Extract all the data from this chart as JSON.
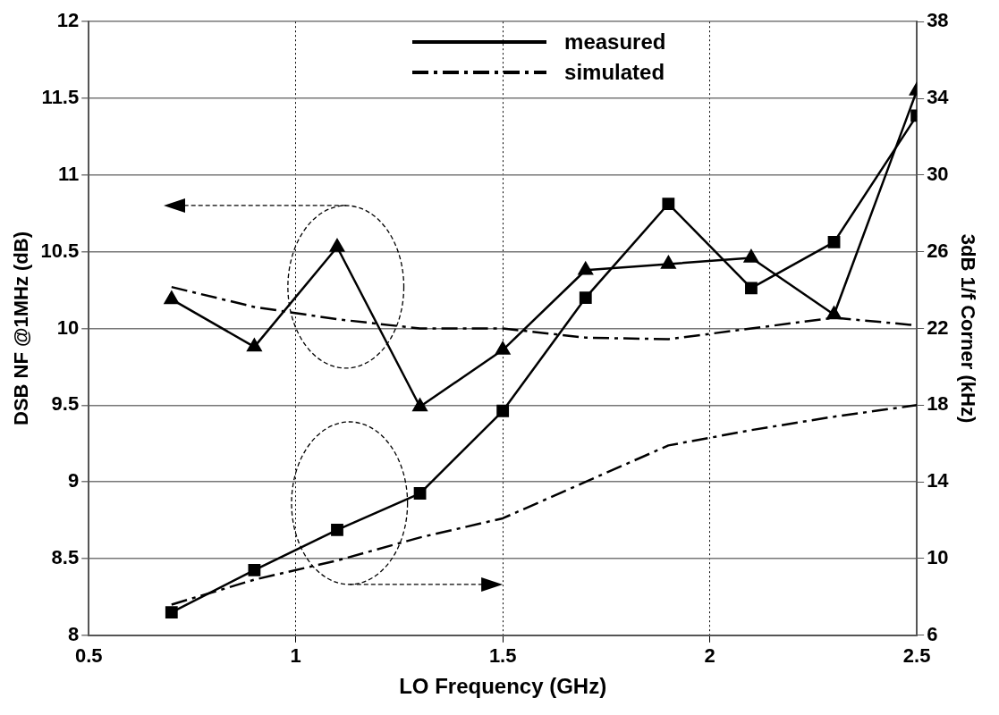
{
  "chart_data": {
    "type": "line",
    "xlabel": "LO Frequency (GHz)",
    "ylabel": "DSB NF @1MHz (dB)",
    "y2label": "3dB 1/f Corner (kHz)",
    "annotations": [
      "measured",
      "simulated"
    ],
    "x": [
      0.7,
      0.9,
      1.1,
      1.3,
      1.5,
      1.7,
      1.9,
      2.1,
      2.3,
      2.5
    ],
    "series": [
      {
        "color": "#000000",
        "marker": "triangle",
        "line_style": "solid",
        "values": [
          10.19,
          9.88,
          10.53,
          9.49,
          9.86,
          10.38,
          10.42,
          10.46,
          10.09,
          11.55
        ]
      },
      {
        "color": "#000000",
        "marker": "none",
        "line_style": "dashed",
        "values": [
          10.27,
          10.14,
          10.06,
          10.0,
          10.0,
          9.94,
          9.93,
          10.0,
          10.07,
          10.02
        ]
      },
      {
        "color": "#000000",
        "marker": "square",
        "line_style": "solid",
        "axis": "y2",
        "values": [
          7.2,
          9.4,
          11.5,
          13.4,
          17.7,
          23.6,
          28.5,
          24.1,
          26.5,
          33.1
        ]
      },
      {
        "color": "#000000",
        "marker": "none",
        "line_style": "dashed",
        "axis": "y2",
        "values": [
          7.6,
          8.9,
          9.9,
          11.1,
          12.1,
          14.0,
          15.9,
          16.7,
          17.4,
          18.0
        ]
      }
    ],
    "xlim": [
      0.5,
      2.5
    ],
    "xticks": [
      0.5,
      1,
      1.5,
      2,
      2.5
    ],
    "ylim": [
      8,
      12
    ],
    "yticks": [
      8,
      8.5,
      9,
      9.5,
      10,
      10.5,
      11,
      11.5,
      12
    ],
    "y2lim": [
      6,
      38
    ],
    "y2ticks": [
      6,
      10,
      14,
      18,
      22,
      26,
      30,
      34,
      38
    ],
    "grid": true
  }
}
